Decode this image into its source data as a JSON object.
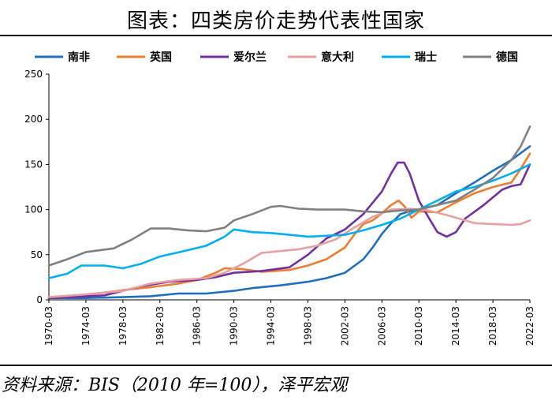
{
  "header": {
    "title": "图表：四类房价走势代表性国家"
  },
  "footer": {
    "source": "资料来源：BIS（2010 年=100），泽平宏观"
  },
  "chart_data": {
    "type": "line",
    "ylim": [
      0,
      250
    ],
    "yticks": [
      0,
      50,
      100,
      150,
      200,
      250
    ],
    "xlim": [
      1970.0,
      2022.0
    ],
    "xticks": [
      "1970-03",
      "1974-03",
      "1978-03",
      "1982-03",
      "1986-03",
      "1990-03",
      "1994-03",
      "1998-03",
      "2002-03",
      "2006-03",
      "2010-03",
      "2014-03",
      "2018-03",
      "2022-03"
    ],
    "legend_position": "top",
    "grid": false,
    "series": [
      {
        "name": "南非",
        "color": "#1f6fc0",
        "points": [
          [
            1970.0,
            2
          ],
          [
            1974,
            2
          ],
          [
            1978,
            3
          ],
          [
            1981,
            4
          ],
          [
            1984,
            7
          ],
          [
            1987,
            7
          ],
          [
            1990,
            10
          ],
          [
            1992,
            13
          ],
          [
            1995,
            16
          ],
          [
            1998,
            20
          ],
          [
            2000,
            24
          ],
          [
            2002,
            30
          ],
          [
            2004,
            45
          ],
          [
            2005,
            58
          ],
          [
            2006,
            73
          ],
          [
            2007,
            85
          ],
          [
            2008,
            95
          ],
          [
            2009,
            98
          ],
          [
            2010,
            100
          ],
          [
            2012,
            105
          ],
          [
            2014,
            118
          ],
          [
            2016,
            130
          ],
          [
            2018,
            143
          ],
          [
            2020,
            155
          ],
          [
            2022,
            170
          ]
        ]
      },
      {
        "name": "英国",
        "color": "#ed7d31",
        "points": [
          [
            1970.0,
            3
          ],
          [
            1973,
            5
          ],
          [
            1976,
            8
          ],
          [
            1979,
            12
          ],
          [
            1981,
            14
          ],
          [
            1984,
            18
          ],
          [
            1986,
            22
          ],
          [
            1988,
            30
          ],
          [
            1989,
            35
          ],
          [
            1991,
            34
          ],
          [
            1993,
            31
          ],
          [
            1996,
            33
          ],
          [
            1998,
            38
          ],
          [
            2000,
            45
          ],
          [
            2002,
            58
          ],
          [
            2003,
            72
          ],
          [
            2004,
            84
          ],
          [
            2005,
            88
          ],
          [
            2006,
            96
          ],
          [
            2007,
            105
          ],
          [
            2007.8,
            110
          ],
          [
            2008.5,
            103
          ],
          [
            2009.2,
            91
          ],
          [
            2010,
            98
          ],
          [
            2012,
            97
          ],
          [
            2014,
            108
          ],
          [
            2016,
            118
          ],
          [
            2018,
            125
          ],
          [
            2020,
            130
          ],
          [
            2021,
            145
          ],
          [
            2022,
            162
          ]
        ]
      },
      {
        "name": "爱尔兰",
        "color": "#7030a0",
        "points": [
          [
            1970.0,
            2
          ],
          [
            1976,
            5
          ],
          [
            1980,
            15
          ],
          [
            1983,
            20
          ],
          [
            1986,
            22
          ],
          [
            1988,
            25
          ],
          [
            1990,
            30
          ],
          [
            1993,
            32
          ],
          [
            1996,
            36
          ],
          [
            1998,
            50
          ],
          [
            2000,
            68
          ],
          [
            2002,
            78
          ],
          [
            2004,
            95
          ],
          [
            2006,
            120
          ],
          [
            2007,
            140
          ],
          [
            2007.7,
            152
          ],
          [
            2008.4,
            152
          ],
          [
            2009,
            140
          ],
          [
            2010,
            110
          ],
          [
            2011,
            92
          ],
          [
            2012,
            75
          ],
          [
            2013,
            70
          ],
          [
            2014,
            75
          ],
          [
            2015,
            90
          ],
          [
            2017,
            105
          ],
          [
            2019,
            122
          ],
          [
            2020,
            126
          ],
          [
            2021,
            128
          ],
          [
            2022,
            150
          ]
        ]
      },
      {
        "name": "意大利",
        "color": "#e6a0a0",
        "points": [
          [
            1970.0,
            3
          ],
          [
            1974,
            6
          ],
          [
            1978,
            10
          ],
          [
            1981,
            18
          ],
          [
            1984,
            22
          ],
          [
            1987,
            24
          ],
          [
            1989,
            30
          ],
          [
            1991,
            40
          ],
          [
            1993,
            52
          ],
          [
            1995,
            54
          ],
          [
            1997,
            56
          ],
          [
            1999,
            60
          ],
          [
            2001,
            67
          ],
          [
            2003,
            80
          ],
          [
            2005,
            92
          ],
          [
            2007,
            100
          ],
          [
            2009,
            101
          ],
          [
            2011,
            99
          ],
          [
            2013,
            94
          ],
          [
            2015,
            88
          ],
          [
            2016,
            85
          ],
          [
            2018,
            84
          ],
          [
            2020,
            83
          ],
          [
            2021,
            84
          ],
          [
            2022,
            88
          ]
        ]
      },
      {
        "name": "瑞士",
        "color": "#00b0f0",
        "points": [
          [
            1970.0,
            24
          ],
          [
            1972,
            29
          ],
          [
            1973.5,
            38
          ],
          [
            1976,
            38
          ],
          [
            1978,
            35
          ],
          [
            1980,
            40
          ],
          [
            1982,
            48
          ],
          [
            1985,
            55
          ],
          [
            1987,
            60
          ],
          [
            1989,
            70
          ],
          [
            1990,
            78
          ],
          [
            1992,
            75
          ],
          [
            1994,
            74
          ],
          [
            1996,
            72
          ],
          [
            1998,
            70
          ],
          [
            2000,
            71
          ],
          [
            2002,
            72
          ],
          [
            2004,
            77
          ],
          [
            2006,
            83
          ],
          [
            2008,
            90
          ],
          [
            2010,
            100
          ],
          [
            2012,
            110
          ],
          [
            2014,
            120
          ],
          [
            2016,
            125
          ],
          [
            2018,
            132
          ],
          [
            2020,
            140
          ],
          [
            2021,
            145
          ],
          [
            2022,
            150
          ]
        ]
      },
      {
        "name": "德国",
        "color": "#808080",
        "points": [
          [
            1970.0,
            38
          ],
          [
            1972,
            45
          ],
          [
            1974,
            53
          ],
          [
            1977,
            57
          ],
          [
            1979,
            67
          ],
          [
            1981,
            79
          ],
          [
            1983,
            79
          ],
          [
            1985,
            77
          ],
          [
            1987,
            76
          ],
          [
            1989,
            80
          ],
          [
            1990,
            88
          ],
          [
            1992,
            95
          ],
          [
            1994,
            103
          ],
          [
            1995,
            104
          ],
          [
            1997,
            101
          ],
          [
            1999,
            100
          ],
          [
            2002,
            100
          ],
          [
            2004,
            98
          ],
          [
            2006,
            97
          ],
          [
            2008,
            99
          ],
          [
            2010,
            100
          ],
          [
            2012,
            105
          ],
          [
            2014,
            110
          ],
          [
            2016,
            122
          ],
          [
            2018,
            135
          ],
          [
            2020,
            155
          ],
          [
            2021,
            170
          ],
          [
            2022,
            192
          ]
        ]
      }
    ]
  }
}
